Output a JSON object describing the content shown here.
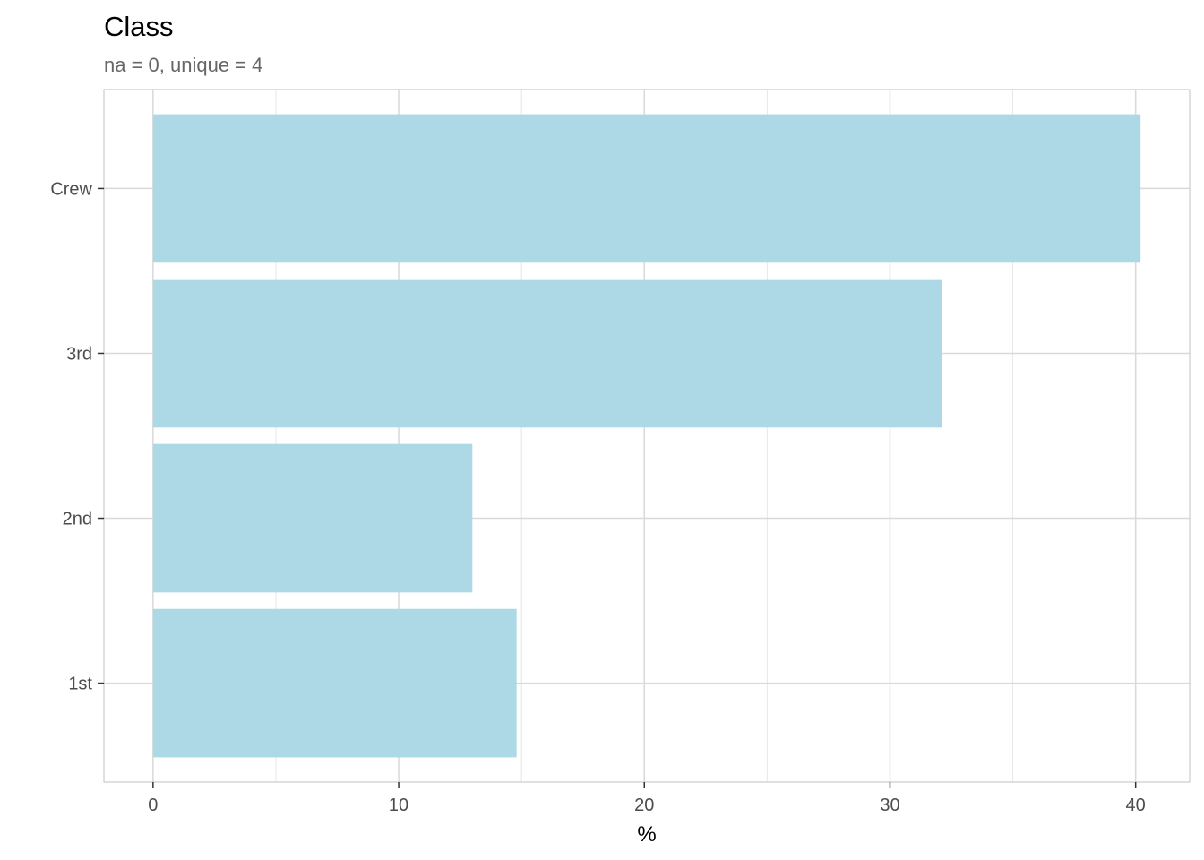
{
  "chart_data": {
    "type": "bar",
    "orientation": "horizontal",
    "title": "Class",
    "subtitle": "na = 0, unique = 4",
    "xlabel": "%",
    "ylabel": "",
    "categories": [
      "1st",
      "2nd",
      "3rd",
      "Crew"
    ],
    "values": [
      14.8,
      13.0,
      32.1,
      40.2
    ],
    "xlim": [
      -2.0,
      42.2
    ],
    "xticks": [
      0,
      10,
      20,
      30,
      40
    ],
    "xtick_labels": [
      "0",
      "10",
      "20",
      "30",
      "40"
    ],
    "grid": true,
    "legend": "none",
    "colors": {
      "bar": "#ADD8E6",
      "grid": "#D9D9D9",
      "panel_border": "#CCCCCC",
      "tick_text": "#4D4D4D"
    }
  }
}
